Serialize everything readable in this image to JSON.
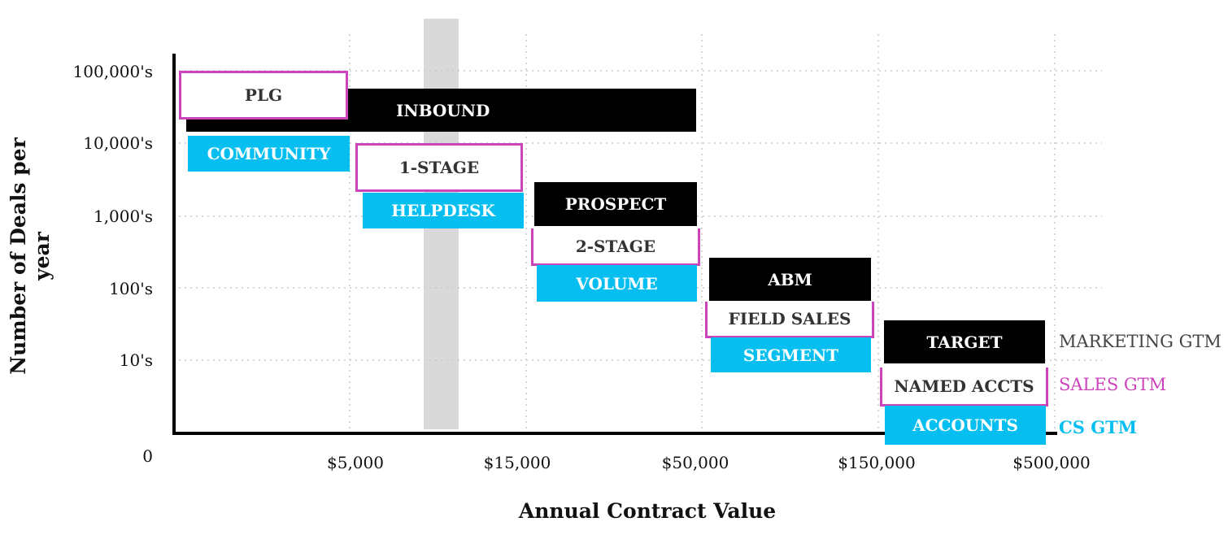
{
  "y_axis": {
    "title": "Number of Deals per year",
    "ticks": [
      "100,000's",
      "10,000's",
      "1,000's",
      "100's",
      "10's",
      "0"
    ]
  },
  "x_axis": {
    "title": "Annual Contract Value",
    "ticks": [
      "$5,000",
      "$15,000",
      "$50,000",
      "$150,000",
      "$500,000"
    ]
  },
  "segments": [
    {
      "marketing": "INBOUND",
      "sales": "PLG",
      "cs": "COMMUNITY"
    },
    {
      "marketing": "",
      "sales": "1-STAGE",
      "cs": "HELPDESK"
    },
    {
      "marketing": "PROSPECT",
      "sales": "2-STAGE",
      "cs": "VOLUME"
    },
    {
      "marketing": "ABM",
      "sales": "FIELD SALES",
      "cs": "SEGMENT"
    },
    {
      "marketing": "TARGET",
      "sales": "NAMED ACCTS",
      "cs": "ACCOUNTS"
    }
  ],
  "legend": {
    "marketing": "MARKETING GTM",
    "sales": "SALES GTM",
    "cs": "CS GTM"
  },
  "colors": {
    "marketing": "#000000",
    "sales": "#cc44bb",
    "cs": "#06bff0",
    "highlight_band": "#d9d9d9"
  }
}
